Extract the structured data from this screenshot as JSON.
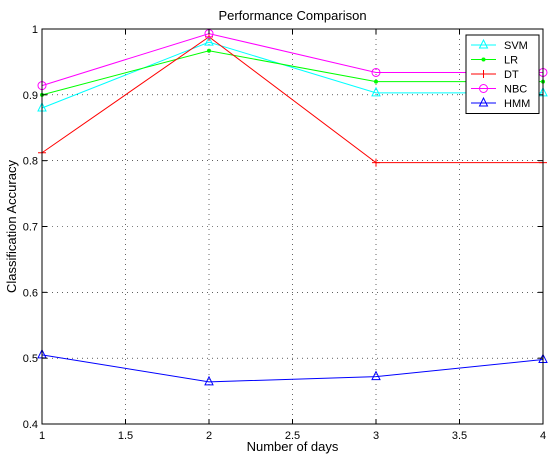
{
  "chart_data": {
    "type": "line",
    "title": "Performance Comparison",
    "xlabel": "Number of days",
    "ylabel": "Classification Accuracy",
    "xlim": [
      1,
      4
    ],
    "ylim": [
      0.4,
      1.0
    ],
    "x_ticks": [
      "1",
      "1.5",
      "2",
      "2.5",
      "3",
      "3.5",
      "4"
    ],
    "y_ticks": [
      "0.4",
      "0.5",
      "0.6",
      "0.7",
      "0.8",
      "0.9",
      "1"
    ],
    "grid": true,
    "legend_position": "top-right",
    "x": [
      1,
      2,
      3,
      4
    ],
    "series": [
      {
        "name": "SVM",
        "values": [
          0.88,
          0.98,
          0.903,
          0.903
        ],
        "color": "#00ffff",
        "marker": "triangle-up"
      },
      {
        "name": "LR",
        "values": [
          0.9,
          0.967,
          0.92,
          0.92
        ],
        "color": "#00ff00",
        "marker": "point"
      },
      {
        "name": "DT",
        "values": [
          0.812,
          0.988,
          0.797,
          0.797
        ],
        "color": "#ff0000",
        "marker": "plus"
      },
      {
        "name": "NBC",
        "values": [
          0.914,
          0.993,
          0.934,
          0.934
        ],
        "color": "#ff00ff",
        "marker": "circle"
      },
      {
        "name": "HMM",
        "values": [
          0.505,
          0.464,
          0.472,
          0.498
        ],
        "color": "#0000ff",
        "marker": "triangle-up"
      }
    ]
  }
}
